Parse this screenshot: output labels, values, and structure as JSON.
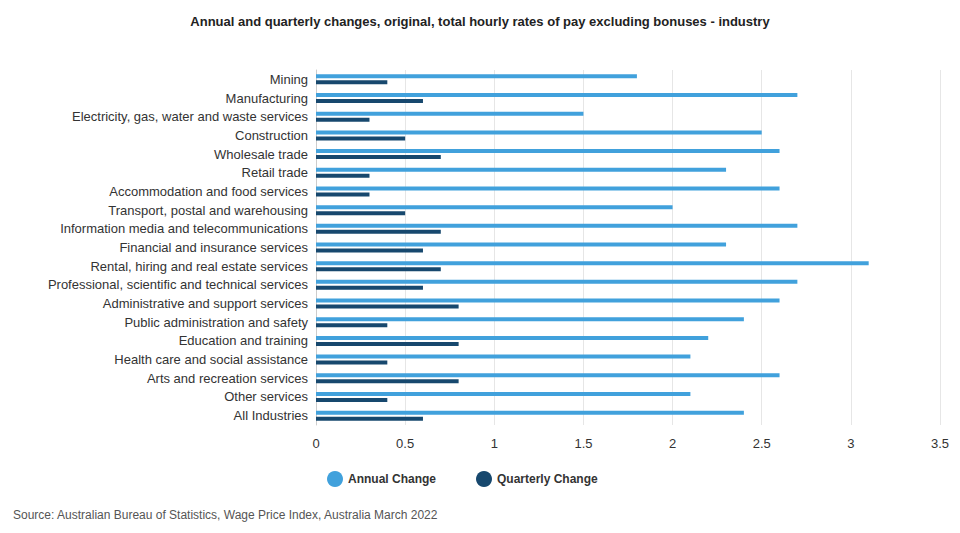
{
  "chart_data": {
    "type": "bar",
    "orientation": "horizontal",
    "title": "Annual and quarterly changes, original, total hourly rates of pay excluding bonuses - industry",
    "source": "Source: Australian Bureau of Statistics, Wage Price Index, Australia March 2022",
    "categories": [
      "Mining",
      "Manufacturing",
      "Electricity, gas, water and waste services",
      "Construction",
      "Wholesale trade",
      "Retail trade",
      "Accommodation and food services",
      "Transport, postal and warehousing",
      "Information media and telecommunications",
      "Financial and insurance services",
      "Rental, hiring and real estate services",
      "Professional, scientific and technical services",
      "Administrative and support services",
      "Public administration and safety",
      "Education and training",
      "Health care and social assistance",
      "Arts and recreation services",
      "Other services",
      "All Industries"
    ],
    "series": [
      {
        "name": "Annual Change",
        "color": "#41a1dc",
        "values": [
          1.8,
          2.7,
          1.5,
          2.5,
          2.6,
          2.3,
          2.6,
          2.0,
          2.7,
          2.3,
          3.1,
          2.7,
          2.6,
          2.4,
          2.2,
          2.1,
          2.6,
          2.1,
          2.4
        ]
      },
      {
        "name": "Quarterly Change",
        "color": "#17486e",
        "values": [
          0.4,
          0.6,
          0.3,
          0.5,
          0.7,
          0.3,
          0.3,
          0.5,
          0.7,
          0.6,
          0.7,
          0.6,
          0.8,
          0.4,
          0.8,
          0.4,
          0.8,
          0.4,
          0.6
        ]
      }
    ],
    "xlim": [
      0,
      3.5
    ],
    "xticks": [
      0,
      0.5,
      1,
      1.5,
      2,
      2.5,
      3,
      3.5
    ],
    "grid": true,
    "legend": "bottom"
  }
}
